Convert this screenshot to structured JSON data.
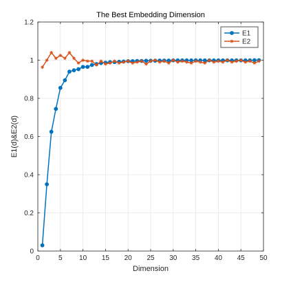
{
  "chart_data": {
    "type": "line",
    "title": "The Best Embedding Dimension",
    "xlabel": "Dimension",
    "ylabel": "E1(d)&E2(d)",
    "xlim": [
      0,
      50
    ],
    "ylim": [
      0,
      1.2
    ],
    "xticks": [
      0,
      5,
      10,
      15,
      20,
      25,
      30,
      35,
      40,
      45,
      50
    ],
    "yticks": [
      0,
      0.2,
      0.4,
      0.6,
      0.8,
      1,
      1.2
    ],
    "xtick_labels": [
      "0",
      "5",
      "10",
      "15",
      "20",
      "25",
      "30",
      "35",
      "40",
      "45",
      "50"
    ],
    "ytick_labels": [
      "0",
      "0.2",
      "0.4",
      "0.6",
      "0.8",
      "1",
      "1.2"
    ],
    "grid": true,
    "legend_position": "top-right",
    "x": [
      1,
      2,
      3,
      4,
      5,
      6,
      7,
      8,
      9,
      10,
      11,
      12,
      13,
      14,
      15,
      16,
      17,
      18,
      19,
      20,
      21,
      22,
      23,
      24,
      25,
      26,
      27,
      28,
      29,
      30,
      31,
      32,
      33,
      34,
      35,
      36,
      37,
      38,
      39,
      40,
      41,
      42,
      43,
      44,
      45,
      46,
      47,
      48,
      49
    ],
    "series": [
      {
        "name": "E1",
        "color": "#0072BD",
        "marker": "circle",
        "values": [
          0.03,
          0.35,
          0.625,
          0.745,
          0.855,
          0.895,
          0.94,
          0.947,
          0.953,
          0.965,
          0.965,
          0.975,
          0.98,
          0.985,
          0.987,
          0.99,
          0.99,
          0.992,
          0.993,
          0.995,
          0.995,
          0.996,
          0.996,
          0.997,
          0.997,
          0.997,
          0.998,
          0.998,
          0.998,
          0.999,
          0.999,
          0.999,
          0.999,
          0.999,
          0.999,
          0.999,
          0.999,
          0.999,
          0.999,
          0.999,
          0.999,
          0.999,
          0.999,
          0.999,
          0.999,
          0.999,
          0.999,
          1.0,
          1.0
        ]
      },
      {
        "name": "E2",
        "color": "#D95319",
        "marker": "star",
        "values": [
          0.963,
          1.0,
          1.04,
          1.01,
          1.025,
          1.01,
          1.04,
          1.01,
          0.985,
          1.0,
          0.995,
          0.995,
          0.975,
          0.995,
          0.98,
          0.985,
          0.995,
          0.985,
          0.99,
          0.995,
          0.985,
          0.99,
          0.995,
          0.98,
          0.995,
          1.0,
          0.99,
          0.995,
          0.985,
          1.0,
          0.99,
          0.995,
          0.99,
          0.985,
          0.995,
          0.99,
          0.985,
          1.0,
          0.99,
          0.995,
          0.99,
          1.0,
          0.99,
          0.995,
          1.0,
          0.99,
          0.995,
          0.985,
          0.995
        ]
      }
    ]
  }
}
